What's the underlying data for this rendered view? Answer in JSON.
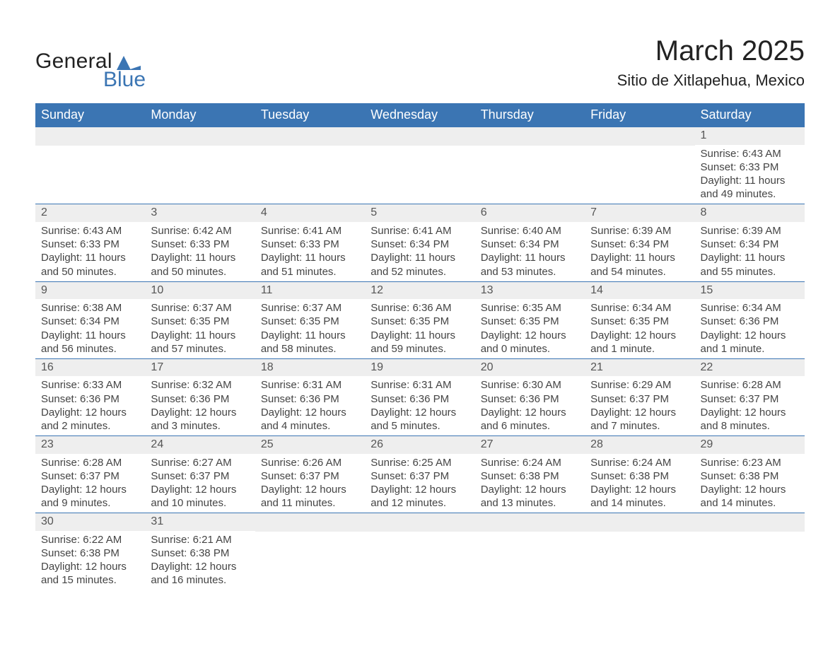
{
  "brand": {
    "word1": "General",
    "word2": "Blue",
    "accent_color": "#3b75b3"
  },
  "header": {
    "title": "March 2025",
    "subtitle": "Sitio de Xitlapehua, Mexico"
  },
  "columns": [
    "Sunday",
    "Monday",
    "Tuesday",
    "Wednesday",
    "Thursday",
    "Friday",
    "Saturday"
  ],
  "colors": {
    "header_bg": "#3b75b3",
    "header_text": "#ffffff",
    "daynum_bg": "#eeeeee",
    "rule": "#3b75b3",
    "body_text": "#444444"
  },
  "weeks": [
    [
      {
        "day": ""
      },
      {
        "day": ""
      },
      {
        "day": ""
      },
      {
        "day": ""
      },
      {
        "day": ""
      },
      {
        "day": ""
      },
      {
        "day": "1",
        "sunrise": "Sunrise: 6:43 AM",
        "sunset": "Sunset: 6:33 PM",
        "dl1": "Daylight: 11 hours",
        "dl2": "and 49 minutes."
      }
    ],
    [
      {
        "day": "2",
        "sunrise": "Sunrise: 6:43 AM",
        "sunset": "Sunset: 6:33 PM",
        "dl1": "Daylight: 11 hours",
        "dl2": "and 50 minutes."
      },
      {
        "day": "3",
        "sunrise": "Sunrise: 6:42 AM",
        "sunset": "Sunset: 6:33 PM",
        "dl1": "Daylight: 11 hours",
        "dl2": "and 50 minutes."
      },
      {
        "day": "4",
        "sunrise": "Sunrise: 6:41 AM",
        "sunset": "Sunset: 6:33 PM",
        "dl1": "Daylight: 11 hours",
        "dl2": "and 51 minutes."
      },
      {
        "day": "5",
        "sunrise": "Sunrise: 6:41 AM",
        "sunset": "Sunset: 6:34 PM",
        "dl1": "Daylight: 11 hours",
        "dl2": "and 52 minutes."
      },
      {
        "day": "6",
        "sunrise": "Sunrise: 6:40 AM",
        "sunset": "Sunset: 6:34 PM",
        "dl1": "Daylight: 11 hours",
        "dl2": "and 53 minutes."
      },
      {
        "day": "7",
        "sunrise": "Sunrise: 6:39 AM",
        "sunset": "Sunset: 6:34 PM",
        "dl1": "Daylight: 11 hours",
        "dl2": "and 54 minutes."
      },
      {
        "day": "8",
        "sunrise": "Sunrise: 6:39 AM",
        "sunset": "Sunset: 6:34 PM",
        "dl1": "Daylight: 11 hours",
        "dl2": "and 55 minutes."
      }
    ],
    [
      {
        "day": "9",
        "sunrise": "Sunrise: 6:38 AM",
        "sunset": "Sunset: 6:34 PM",
        "dl1": "Daylight: 11 hours",
        "dl2": "and 56 minutes."
      },
      {
        "day": "10",
        "sunrise": "Sunrise: 6:37 AM",
        "sunset": "Sunset: 6:35 PM",
        "dl1": "Daylight: 11 hours",
        "dl2": "and 57 minutes."
      },
      {
        "day": "11",
        "sunrise": "Sunrise: 6:37 AM",
        "sunset": "Sunset: 6:35 PM",
        "dl1": "Daylight: 11 hours",
        "dl2": "and 58 minutes."
      },
      {
        "day": "12",
        "sunrise": "Sunrise: 6:36 AM",
        "sunset": "Sunset: 6:35 PM",
        "dl1": "Daylight: 11 hours",
        "dl2": "and 59 minutes."
      },
      {
        "day": "13",
        "sunrise": "Sunrise: 6:35 AM",
        "sunset": "Sunset: 6:35 PM",
        "dl1": "Daylight: 12 hours",
        "dl2": "and 0 minutes."
      },
      {
        "day": "14",
        "sunrise": "Sunrise: 6:34 AM",
        "sunset": "Sunset: 6:35 PM",
        "dl1": "Daylight: 12 hours",
        "dl2": "and 1 minute."
      },
      {
        "day": "15",
        "sunrise": "Sunrise: 6:34 AM",
        "sunset": "Sunset: 6:36 PM",
        "dl1": "Daylight: 12 hours",
        "dl2": "and 1 minute."
      }
    ],
    [
      {
        "day": "16",
        "sunrise": "Sunrise: 6:33 AM",
        "sunset": "Sunset: 6:36 PM",
        "dl1": "Daylight: 12 hours",
        "dl2": "and 2 minutes."
      },
      {
        "day": "17",
        "sunrise": "Sunrise: 6:32 AM",
        "sunset": "Sunset: 6:36 PM",
        "dl1": "Daylight: 12 hours",
        "dl2": "and 3 minutes."
      },
      {
        "day": "18",
        "sunrise": "Sunrise: 6:31 AM",
        "sunset": "Sunset: 6:36 PM",
        "dl1": "Daylight: 12 hours",
        "dl2": "and 4 minutes."
      },
      {
        "day": "19",
        "sunrise": "Sunrise: 6:31 AM",
        "sunset": "Sunset: 6:36 PM",
        "dl1": "Daylight: 12 hours",
        "dl2": "and 5 minutes."
      },
      {
        "day": "20",
        "sunrise": "Sunrise: 6:30 AM",
        "sunset": "Sunset: 6:36 PM",
        "dl1": "Daylight: 12 hours",
        "dl2": "and 6 minutes."
      },
      {
        "day": "21",
        "sunrise": "Sunrise: 6:29 AM",
        "sunset": "Sunset: 6:37 PM",
        "dl1": "Daylight: 12 hours",
        "dl2": "and 7 minutes."
      },
      {
        "day": "22",
        "sunrise": "Sunrise: 6:28 AM",
        "sunset": "Sunset: 6:37 PM",
        "dl1": "Daylight: 12 hours",
        "dl2": "and 8 minutes."
      }
    ],
    [
      {
        "day": "23",
        "sunrise": "Sunrise: 6:28 AM",
        "sunset": "Sunset: 6:37 PM",
        "dl1": "Daylight: 12 hours",
        "dl2": "and 9 minutes."
      },
      {
        "day": "24",
        "sunrise": "Sunrise: 6:27 AM",
        "sunset": "Sunset: 6:37 PM",
        "dl1": "Daylight: 12 hours",
        "dl2": "and 10 minutes."
      },
      {
        "day": "25",
        "sunrise": "Sunrise: 6:26 AM",
        "sunset": "Sunset: 6:37 PM",
        "dl1": "Daylight: 12 hours",
        "dl2": "and 11 minutes."
      },
      {
        "day": "26",
        "sunrise": "Sunrise: 6:25 AM",
        "sunset": "Sunset: 6:37 PM",
        "dl1": "Daylight: 12 hours",
        "dl2": "and 12 minutes."
      },
      {
        "day": "27",
        "sunrise": "Sunrise: 6:24 AM",
        "sunset": "Sunset: 6:38 PM",
        "dl1": "Daylight: 12 hours",
        "dl2": "and 13 minutes."
      },
      {
        "day": "28",
        "sunrise": "Sunrise: 6:24 AM",
        "sunset": "Sunset: 6:38 PM",
        "dl1": "Daylight: 12 hours",
        "dl2": "and 14 minutes."
      },
      {
        "day": "29",
        "sunrise": "Sunrise: 6:23 AM",
        "sunset": "Sunset: 6:38 PM",
        "dl1": "Daylight: 12 hours",
        "dl2": "and 14 minutes."
      }
    ],
    [
      {
        "day": "30",
        "sunrise": "Sunrise: 6:22 AM",
        "sunset": "Sunset: 6:38 PM",
        "dl1": "Daylight: 12 hours",
        "dl2": "and 15 minutes."
      },
      {
        "day": "31",
        "sunrise": "Sunrise: 6:21 AM",
        "sunset": "Sunset: 6:38 PM",
        "dl1": "Daylight: 12 hours",
        "dl2": "and 16 minutes."
      },
      {
        "day": ""
      },
      {
        "day": ""
      },
      {
        "day": ""
      },
      {
        "day": ""
      },
      {
        "day": ""
      }
    ]
  ]
}
